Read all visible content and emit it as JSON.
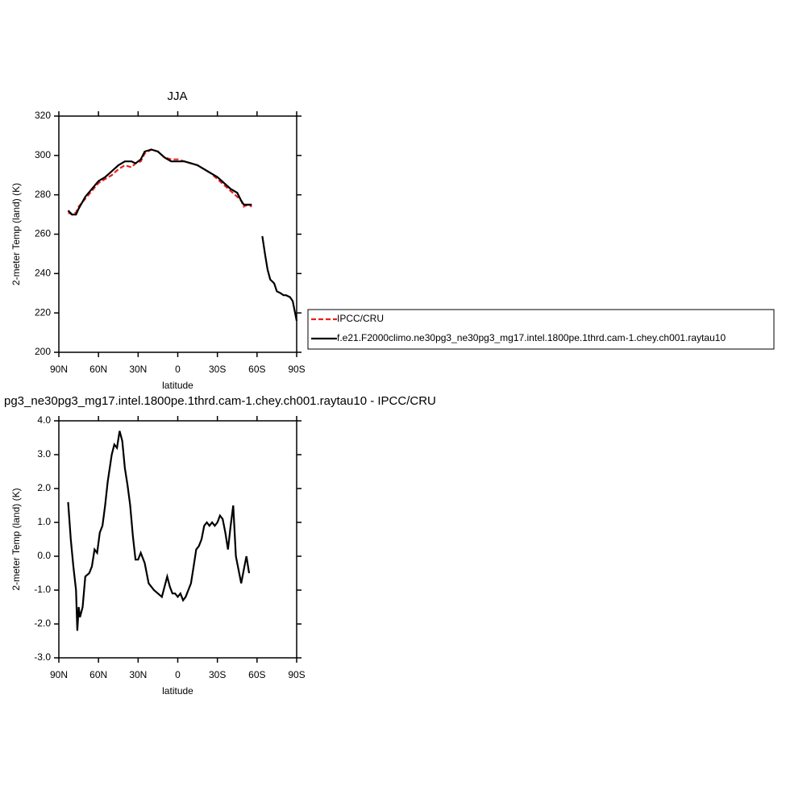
{
  "chart_data": [
    {
      "type": "line",
      "title": "JJA",
      "xlabel": "latitude",
      "ylabel": "2-meter Temp (land) (K)",
      "x": [
        83,
        80,
        77,
        75,
        70,
        65,
        60,
        55,
        50,
        45,
        40,
        35,
        32,
        28,
        25,
        20,
        15,
        10,
        5,
        0,
        -5,
        -10,
        -15,
        -20,
        -25,
        -30,
        -35,
        -40,
        -45,
        -48,
        -50,
        -53,
        -56,
        -60,
        -64,
        -66,
        -68,
        -70,
        -73,
        -75,
        -78,
        -80,
        -82,
        -85,
        -87,
        -90
      ],
      "series": [
        {
          "name": "IPCC/CRU",
          "color": "#e8201a",
          "dashed": true,
          "values": [
            271,
            270,
            271,
            274,
            278,
            282,
            286,
            288,
            290,
            293,
            295,
            294,
            296,
            297,
            301,
            303,
            302,
            299,
            298,
            298,
            297,
            296,
            295,
            293,
            291,
            288,
            285,
            282,
            279,
            277,
            274,
            275,
            274,
            null,
            null,
            null,
            null,
            null,
            null,
            null,
            null,
            null,
            null,
            null,
            null,
            null
          ]
        },
        {
          "name": "f.e21.F2000climo.ne30pg3_ne30pg3_mg17.intel.1800pe.1thrd.cam-1.chey.ch001.raytau10",
          "color": "#000000",
          "dashed": false,
          "values": [
            272,
            270,
            270,
            273,
            279,
            283,
            287,
            289,
            292,
            295,
            297,
            297,
            296,
            298,
            302,
            303,
            302,
            299,
            297,
            297,
            297,
            296,
            295,
            293,
            291,
            289,
            286,
            283,
            281,
            277,
            275,
            275,
            275,
            null,
            259,
            250,
            242,
            237,
            235,
            231,
            230,
            229,
            229,
            228,
            226,
            216
          ]
        }
      ],
      "xlim": [
        90,
        -90
      ],
      "xticks": [
        {
          "value": 90,
          "label": "90N"
        },
        {
          "value": 60,
          "label": "60N"
        },
        {
          "value": 30,
          "label": "30N"
        },
        0,
        {
          "value": -30,
          "label": "30S"
        },
        {
          "value": -60,
          "label": "60S"
        },
        {
          "value": -90,
          "label": "90S"
        }
      ],
      "ylim": [
        200,
        320
      ],
      "yticks": [
        200,
        220,
        240,
        260,
        280,
        300,
        320
      ],
      "legend": "right"
    },
    {
      "type": "line",
      "title": "pg3_ne30pg3_mg17.intel.1800pe.1thrd.cam-1.chey.ch001.raytau10 - IPCC/CRU",
      "xlabel": "latitude",
      "ylabel": "2-meter Temp (land) (K)",
      "x": [
        83,
        81,
        79,
        77,
        76,
        75,
        74,
        72,
        70,
        67,
        65,
        63,
        61,
        59,
        57,
        55,
        53,
        50,
        48,
        46,
        44,
        42,
        40,
        38,
        36,
        34,
        32,
        30,
        28,
        25,
        22,
        20,
        18,
        15,
        12,
        10,
        8,
        6,
        4,
        2,
        0,
        -2,
        -4,
        -6,
        -8,
        -10,
        -12,
        -14,
        -16,
        -18,
        -20,
        -22,
        -24,
        -26,
        -28,
        -30,
        -32,
        -34,
        -36,
        -38,
        -40,
        -42,
        -44,
        -46,
        -48,
        -50,
        -52,
        -54
      ],
      "series": [
        {
          "color": "#000000",
          "dashed": false,
          "values": [
            1.6,
            0.5,
            -0.3,
            -1.0,
            -2.2,
            -1.5,
            -1.8,
            -1.5,
            -0.6,
            -0.5,
            -0.3,
            0.2,
            0.1,
            0.7,
            0.9,
            1.5,
            2.2,
            3.0,
            3.3,
            3.2,
            3.7,
            3.4,
            2.6,
            2.1,
            1.5,
            0.6,
            -0.1,
            -0.1,
            0.1,
            -0.2,
            -0.8,
            -0.9,
            -1.0,
            -1.1,
            -1.2,
            -0.9,
            -0.6,
            -0.9,
            -1.1,
            -1.1,
            -1.2,
            -1.1,
            -1.3,
            -1.2,
            -1.0,
            -0.8,
            -0.3,
            0.2,
            0.3,
            0.5,
            0.9,
            1.0,
            0.9,
            1.0,
            0.9,
            1.0,
            1.2,
            1.1,
            0.7,
            0.2,
            0.9,
            1.5,
            0.0,
            -0.4,
            -0.8,
            -0.4,
            0.0,
            -0.5
          ]
        }
      ],
      "xlim": [
        90,
        -90
      ],
      "xticks": [
        {
          "value": 90,
          "label": "90N"
        },
        {
          "value": 60,
          "label": "60N"
        },
        {
          "value": 30,
          "label": "30N"
        },
        0,
        {
          "value": -30,
          "label": "30S"
        },
        {
          "value": -60,
          "label": "60S"
        },
        {
          "value": -90,
          "label": "90S"
        }
      ],
      "ylim": [
        -3,
        4
      ],
      "yticks": [
        {
          "value": -3,
          "label": "-3.0"
        },
        {
          "value": -2,
          "label": "-2.0"
        },
        {
          "value": -1,
          "label": "-1.0"
        },
        {
          "value": 0,
          "label": "0.0"
        },
        {
          "value": 1,
          "label": "1.0"
        },
        {
          "value": 2,
          "label": "2.0"
        },
        {
          "value": 3,
          "label": "3.0"
        },
        {
          "value": 4,
          "label": "4.0"
        }
      ]
    }
  ]
}
